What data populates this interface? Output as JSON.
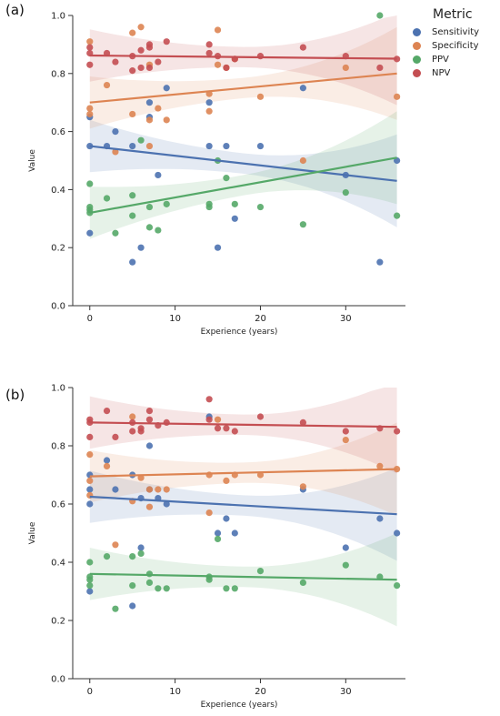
{
  "panels": [
    {
      "label": "(a)"
    },
    {
      "label": "(b)"
    }
  ],
  "legend": {
    "title": "Metric",
    "items": [
      "Sensitivity",
      "Specificity",
      "PPV",
      "NPV"
    ]
  },
  "colors": {
    "Sensitivity": "#4c72b0",
    "Specificity": "#dd8452",
    "PPV": "#55a868",
    "NPV": "#c44e52"
  },
  "chart_data": [
    {
      "type": "scatter",
      "panel": "(a)",
      "xlabel": "Experience (years)",
      "ylabel": "Value",
      "xlim": [
        -2,
        37
      ],
      "ylim": [
        0,
        1
      ],
      "xticks": [
        0,
        10,
        20,
        30
      ],
      "yticks": [
        0.0,
        0.2,
        0.4,
        0.6,
        0.8,
        1.0
      ],
      "grid": false,
      "legend_position": "top-right, outside",
      "series": [
        {
          "name": "Sensitivity",
          "points": [
            [
              0,
              0.25
            ],
            [
              0,
              0.55
            ],
            [
              0,
              0.65
            ],
            [
              2,
              0.55
            ],
            [
              3,
              0.6
            ],
            [
              5,
              0.15
            ],
            [
              5,
              0.55
            ],
            [
              6,
              0.2
            ],
            [
              7,
              0.7
            ],
            [
              7,
              0.65
            ],
            [
              8,
              0.45
            ],
            [
              9,
              0.75
            ],
            [
              14,
              0.55
            ],
            [
              14,
              0.7
            ],
            [
              15,
              0.2
            ],
            [
              16,
              0.55
            ],
            [
              17,
              0.3
            ],
            [
              20,
              0.55
            ],
            [
              25,
              0.75
            ],
            [
              30,
              0.45
            ],
            [
              34,
              0.15
            ],
            [
              36,
              0.5
            ]
          ],
          "fit": [
            [
              0,
              0.55
            ],
            [
              36,
              0.43
            ]
          ]
        },
        {
          "name": "Specificity",
          "points": [
            [
              0,
              0.91
            ],
            [
              0,
              0.68
            ],
            [
              0,
              0.66
            ],
            [
              2,
              0.76
            ],
            [
              3,
              0.53
            ],
            [
              5,
              0.94
            ],
            [
              5,
              0.66
            ],
            [
              6,
              0.96
            ],
            [
              7,
              0.83
            ],
            [
              7,
              0.64
            ],
            [
              7,
              0.55
            ],
            [
              8,
              0.68
            ],
            [
              9,
              0.64
            ],
            [
              14,
              0.73
            ],
            [
              14,
              0.67
            ],
            [
              15,
              0.95
            ],
            [
              15,
              0.83
            ],
            [
              16,
              0.82
            ],
            [
              17,
              0.85
            ],
            [
              20,
              0.72
            ],
            [
              25,
              0.5
            ],
            [
              30,
              0.82
            ],
            [
              36,
              0.72
            ]
          ],
          "fit": [
            [
              0,
              0.7
            ],
            [
              36,
              0.8
            ]
          ]
        },
        {
          "name": "PPV",
          "points": [
            [
              0,
              0.42
            ],
            [
              0,
              0.34
            ],
            [
              0,
              0.33
            ],
            [
              0,
              0.32
            ],
            [
              2,
              0.37
            ],
            [
              3,
              0.25
            ],
            [
              5,
              0.31
            ],
            [
              5,
              0.38
            ],
            [
              6,
              0.57
            ],
            [
              7,
              0.34
            ],
            [
              7,
              0.27
            ],
            [
              8,
              0.26
            ],
            [
              9,
              0.35
            ],
            [
              14,
              0.34
            ],
            [
              14,
              0.35
            ],
            [
              15,
              0.5
            ],
            [
              16,
              0.44
            ],
            [
              17,
              0.35
            ],
            [
              20,
              0.34
            ],
            [
              25,
              0.28
            ],
            [
              30,
              0.39
            ],
            [
              34,
              1.0
            ],
            [
              36,
              0.31
            ]
          ],
          "fit": [
            [
              0,
              0.32
            ],
            [
              36,
              0.51
            ]
          ]
        },
        {
          "name": "NPV",
          "points": [
            [
              0,
              0.89
            ],
            [
              0,
              0.87
            ],
            [
              0,
              0.83
            ],
            [
              2,
              0.87
            ],
            [
              3,
              0.84
            ],
            [
              5,
              0.86
            ],
            [
              5,
              0.81
            ],
            [
              6,
              0.88
            ],
            [
              6,
              0.82
            ],
            [
              7,
              0.9
            ],
            [
              7,
              0.89
            ],
            [
              7,
              0.82
            ],
            [
              8,
              0.84
            ],
            [
              9,
              0.91
            ],
            [
              14,
              0.9
            ],
            [
              14,
              0.87
            ],
            [
              15,
              0.86
            ],
            [
              16,
              0.82
            ],
            [
              17,
              0.85
            ],
            [
              20,
              0.86
            ],
            [
              25,
              0.89
            ],
            [
              30,
              0.86
            ],
            [
              34,
              0.82
            ],
            [
              36,
              0.85
            ]
          ],
          "fit": [
            [
              0,
              0.862
            ],
            [
              36,
              0.851
            ]
          ]
        }
      ]
    },
    {
      "type": "scatter",
      "panel": "(b)",
      "xlabel": "Experience (years)",
      "ylabel": "Value",
      "xlim": [
        -2,
        37
      ],
      "ylim": [
        0,
        1
      ],
      "xticks": [
        0,
        10,
        20,
        30
      ],
      "yticks": [
        0.0,
        0.2,
        0.4,
        0.6,
        0.8,
        1.0
      ],
      "grid": false,
      "series": [
        {
          "name": "Sensitivity",
          "points": [
            [
              0,
              0.3
            ],
            [
              0,
              0.6
            ],
            [
              0,
              0.65
            ],
            [
              0,
              0.7
            ],
            [
              2,
              0.75
            ],
            [
              3,
              0.65
            ],
            [
              5,
              0.25
            ],
            [
              5,
              0.7
            ],
            [
              6,
              0.45
            ],
            [
              6,
              0.62
            ],
            [
              7,
              0.8
            ],
            [
              7,
              0.65
            ],
            [
              8,
              0.62
            ],
            [
              9,
              0.6
            ],
            [
              14,
              0.9
            ],
            [
              15,
              0.5
            ],
            [
              16,
              0.55
            ],
            [
              17,
              0.5
            ],
            [
              25,
              0.65
            ],
            [
              30,
              0.45
            ],
            [
              34,
              0.55
            ],
            [
              36,
              0.5
            ]
          ],
          "fit": [
            [
              0,
              0.625
            ],
            [
              36,
              0.565
            ]
          ]
        },
        {
          "name": "Specificity",
          "points": [
            [
              0,
              0.77
            ],
            [
              0,
              0.68
            ],
            [
              0,
              0.63
            ],
            [
              2,
              0.73
            ],
            [
              3,
              0.46
            ],
            [
              5,
              0.9
            ],
            [
              5,
              0.61
            ],
            [
              6,
              0.69
            ],
            [
              7,
              0.65
            ],
            [
              7,
              0.59
            ],
            [
              8,
              0.65
            ],
            [
              9,
              0.65
            ],
            [
              14,
              0.7
            ],
            [
              14,
              0.57
            ],
            [
              15,
              0.89
            ],
            [
              16,
              0.68
            ],
            [
              17,
              0.7
            ],
            [
              20,
              0.7
            ],
            [
              25,
              0.66
            ],
            [
              30,
              0.82
            ],
            [
              34,
              0.73
            ],
            [
              36,
              0.72
            ]
          ],
          "fit": [
            [
              0,
              0.695
            ],
            [
              36,
              0.72
            ]
          ]
        },
        {
          "name": "PPV",
          "points": [
            [
              0,
              0.4
            ],
            [
              0,
              0.35
            ],
            [
              0,
              0.34
            ],
            [
              0,
              0.32
            ],
            [
              2,
              0.42
            ],
            [
              3,
              0.24
            ],
            [
              5,
              0.42
            ],
            [
              5,
              0.32
            ],
            [
              6,
              0.43
            ],
            [
              7,
              0.36
            ],
            [
              7,
              0.33
            ],
            [
              8,
              0.31
            ],
            [
              9,
              0.31
            ],
            [
              14,
              0.34
            ],
            [
              14,
              0.35
            ],
            [
              15,
              0.48
            ],
            [
              16,
              0.31
            ],
            [
              17,
              0.31
            ],
            [
              20,
              0.37
            ],
            [
              25,
              0.33
            ],
            [
              30,
              0.39
            ],
            [
              34,
              0.35
            ],
            [
              36,
              0.32
            ]
          ],
          "fit": [
            [
              0,
              0.36
            ],
            [
              36,
              0.34
            ]
          ]
        },
        {
          "name": "NPV",
          "points": [
            [
              0,
              0.89
            ],
            [
              0,
              0.88
            ],
            [
              0,
              0.83
            ],
            [
              2,
              0.92
            ],
            [
              3,
              0.83
            ],
            [
              5,
              0.88
            ],
            [
              5,
              0.85
            ],
            [
              6,
              0.86
            ],
            [
              6,
              0.85
            ],
            [
              7,
              0.92
            ],
            [
              7,
              0.89
            ],
            [
              8,
              0.87
            ],
            [
              9,
              0.88
            ],
            [
              14,
              0.96
            ],
            [
              14,
              0.89
            ],
            [
              15,
              0.86
            ],
            [
              16,
              0.86
            ],
            [
              17,
              0.85
            ],
            [
              20,
              0.9
            ],
            [
              25,
              0.88
            ],
            [
              30,
              0.85
            ],
            [
              34,
              0.86
            ],
            [
              36,
              0.85
            ]
          ],
          "fit": [
            [
              0,
              0.88
            ],
            [
              36,
              0.865
            ]
          ]
        }
      ]
    }
  ]
}
